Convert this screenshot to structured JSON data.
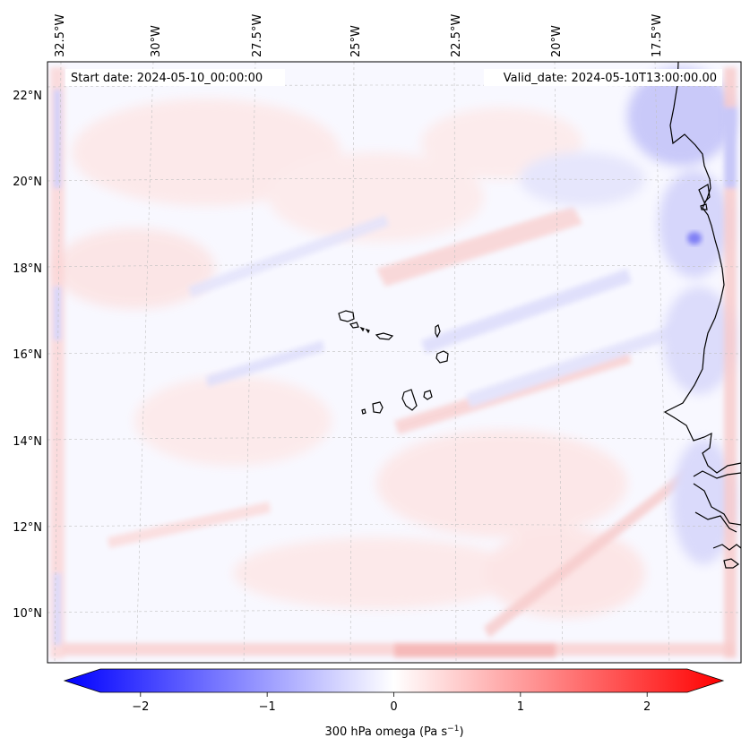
{
  "map": {
    "start_label": "Start date: 2024-05-10_00:00:00",
    "valid_label": "Valid_date: 2024-05-10T13:00:00.00",
    "lon_labels": [
      "32.5°W",
      "30°W",
      "27.5°W",
      "25°W",
      "22.5°W",
      "20°W",
      "17.5°W"
    ],
    "lat_labels": [
      "22°N",
      "20°N",
      "18°N",
      "16°N",
      "14°N",
      "12°N",
      "10°N"
    ],
    "colormap": "bwr",
    "field_description_colors": {
      "negative": "#0000ff",
      "zero": "#ffffff",
      "positive": "#ff0000"
    }
  },
  "colorbar": {
    "ticks": [
      "−2",
      "−1",
      "0",
      "1",
      "2"
    ],
    "tick_values": [
      -2,
      -1,
      0,
      1,
      2
    ],
    "range": [
      -2.6,
      2.6
    ],
    "label": "300 hPa omega (Pa s",
    "label_sup": "−1",
    "label_end": ")"
  }
}
